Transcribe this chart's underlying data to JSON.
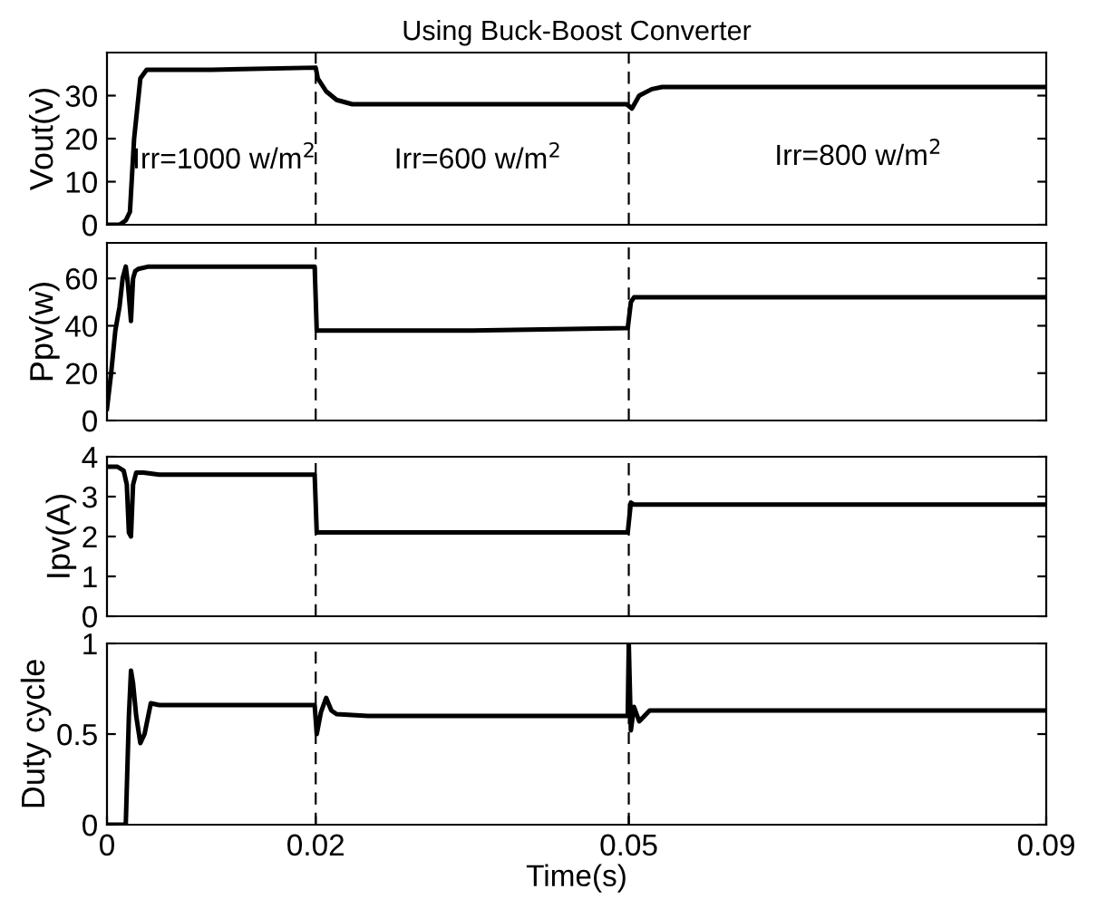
{
  "chart_data": [
    {
      "type": "line",
      "title": "Using Buck-Boost Converter",
      "ylabel": "Vout(v)",
      "xlim": [
        0,
        0.09
      ],
      "ylim": [
        0,
        40
      ],
      "yticks": [
        0,
        10,
        20,
        30
      ],
      "tick_labels": "y",
      "grid": false,
      "legend": false,
      "series": [
        {
          "color": "#000000",
          "x": [
            0,
            0.0012,
            0.0018,
            0.0022,
            0.0026,
            0.0032,
            0.0038,
            0.01,
            0.02,
            0.0202,
            0.021,
            0.022,
            0.0235,
            0.035,
            0.0498,
            0.0503,
            0.051,
            0.0522,
            0.0532,
            0.07,
            0.09
          ],
          "values": [
            0,
            0,
            1,
            3,
            20,
            34,
            36,
            36,
            36.5,
            34,
            31,
            29,
            28,
            28,
            28,
            27,
            30,
            31.5,
            32,
            32,
            32
          ]
        }
      ],
      "ref_lines": [
        {
          "axis": "x",
          "value": 0.02,
          "line_style": "dashed",
          "color": "#000000"
        },
        {
          "axis": "x",
          "value": 0.05,
          "line_style": "dashed",
          "color": "#000000"
        }
      ],
      "annotations": [
        "Irr=1000 w/m$^{2}$",
        "Irr=600 w/m$^{2}$",
        "Irr=800 w/m$^{2}$"
      ]
    },
    {
      "type": "line",
      "ylabel": "Ppv(w)",
      "xlim": [
        0,
        0.09
      ],
      "ylim": [
        0,
        75
      ],
      "yticks": [
        0,
        20,
        40,
        60
      ],
      "tick_labels": "y",
      "grid": false,
      "legend": false,
      "series": [
        {
          "color": "#000000",
          "x": [
            0,
            0.0004,
            0.0008,
            0.0012,
            0.0015,
            0.0018,
            0.002,
            0.0023,
            0.0025,
            0.0027,
            0.003,
            0.004,
            0.01,
            0.0199,
            0.0201,
            0.0205,
            0.035,
            0.0499,
            0.0502,
            0.0505,
            0.07,
            0.09
          ],
          "values": [
            5,
            20,
            38,
            48,
            60,
            65,
            58,
            42,
            60,
            63,
            64,
            65,
            65,
            65,
            38,
            38,
            38,
            39,
            50,
            52,
            52,
            52
          ]
        }
      ],
      "ref_lines": [
        {
          "axis": "x",
          "value": 0.02,
          "line_style": "dashed",
          "color": "#000000"
        },
        {
          "axis": "x",
          "value": 0.05,
          "line_style": "dashed",
          "color": "#000000"
        }
      ]
    },
    {
      "type": "line",
      "ylabel": "Ipv(A)",
      "xlim": [
        0,
        0.09
      ],
      "ylim": [
        0,
        4
      ],
      "yticks": [
        0,
        1,
        2,
        3,
        4
      ],
      "tick_labels": "y",
      "grid": false,
      "legend": false,
      "series": [
        {
          "color": "#000000",
          "x": [
            0,
            0.001,
            0.0016,
            0.0019,
            0.0021,
            0.0023,
            0.0025,
            0.0028,
            0.0035,
            0.005,
            0.01,
            0.0199,
            0.0201,
            0.021,
            0.035,
            0.0499,
            0.0502,
            0.0505,
            0.07,
            0.09
          ],
          "values": [
            3.75,
            3.75,
            3.65,
            3.3,
            2.1,
            2.0,
            3.3,
            3.6,
            3.6,
            3.55,
            3.55,
            3.55,
            2.1,
            2.1,
            2.1,
            2.1,
            2.85,
            2.8,
            2.8,
            2.8
          ]
        }
      ],
      "ref_lines": [
        {
          "axis": "x",
          "value": 0.02,
          "line_style": "dashed",
          "color": "#000000"
        },
        {
          "axis": "x",
          "value": 0.05,
          "line_style": "dashed",
          "color": "#000000"
        }
      ]
    },
    {
      "type": "line",
      "ylabel": "Duty cycle",
      "xlabel": "Time(s)",
      "xlim": [
        0,
        0.09
      ],
      "ylim": [
        0,
        1
      ],
      "xticks": [
        0,
        0.02,
        0.05,
        0.09
      ],
      "yticks": [
        0,
        0.5,
        1
      ],
      "grid": false,
      "legend": false,
      "series": [
        {
          "color": "#000000",
          "x": [
            0,
            0.0018,
            0.0019,
            0.0021,
            0.0023,
            0.0025,
            0.0028,
            0.0032,
            0.0036,
            0.0042,
            0.005,
            0.01,
            0.0199,
            0.0201,
            0.0205,
            0.021,
            0.0215,
            0.022,
            0.025,
            0.035,
            0.0499,
            0.05,
            0.0502,
            0.0505,
            0.051,
            0.0515,
            0.052,
            0.07,
            0.09
          ],
          "values": [
            0,
            0,
            0.2,
            0.6,
            0.85,
            0.78,
            0.6,
            0.45,
            0.5,
            0.67,
            0.66,
            0.66,
            0.66,
            0.5,
            0.62,
            0.7,
            0.63,
            0.61,
            0.6,
            0.6,
            0.6,
            1.0,
            0.52,
            0.65,
            0.57,
            0.6,
            0.63,
            0.63,
            0.63
          ]
        }
      ],
      "ref_lines": [
        {
          "axis": "x",
          "value": 0.02,
          "line_style": "dashed",
          "color": "#000000"
        },
        {
          "axis": "x",
          "value": 0.05,
          "line_style": "dashed",
          "color": "#000000"
        }
      ]
    }
  ]
}
